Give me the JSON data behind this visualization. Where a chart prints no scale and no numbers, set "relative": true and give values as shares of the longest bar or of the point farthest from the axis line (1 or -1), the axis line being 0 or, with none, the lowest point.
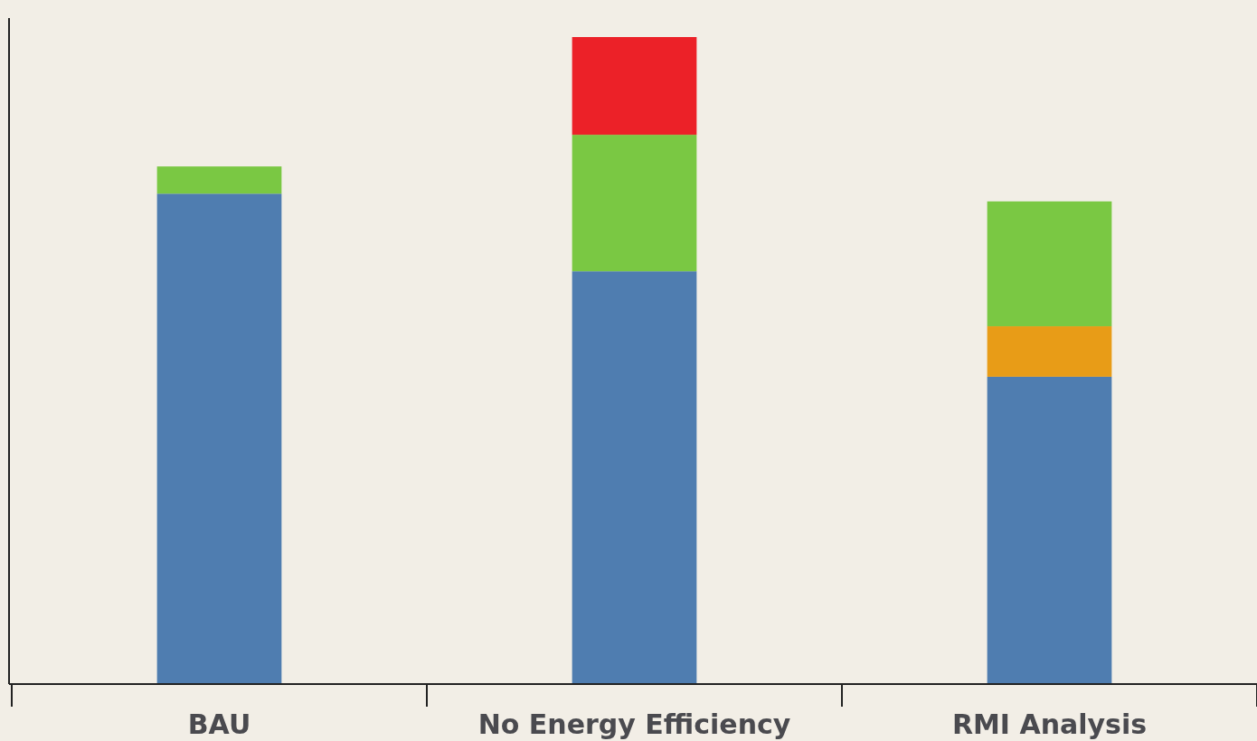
{
  "chart_data": {
    "type": "bar",
    "stacked": true,
    "relative": true,
    "categories": [
      "BAU",
      "No Energy Efficiency",
      "RMI Analysis"
    ],
    "series": [
      {
        "color": "#4f7db0",
        "values": [
          0.758,
          0.638,
          0.475
        ]
      },
      {
        "color": "#e89c17",
        "values": [
          null,
          null,
          0.078
        ]
      },
      {
        "color": "#7ac843",
        "values": [
          0.042,
          0.211,
          0.193
        ]
      },
      {
        "color": "#ec2128",
        "values": [
          null,
          0.151,
          null
        ]
      }
    ]
  }
}
